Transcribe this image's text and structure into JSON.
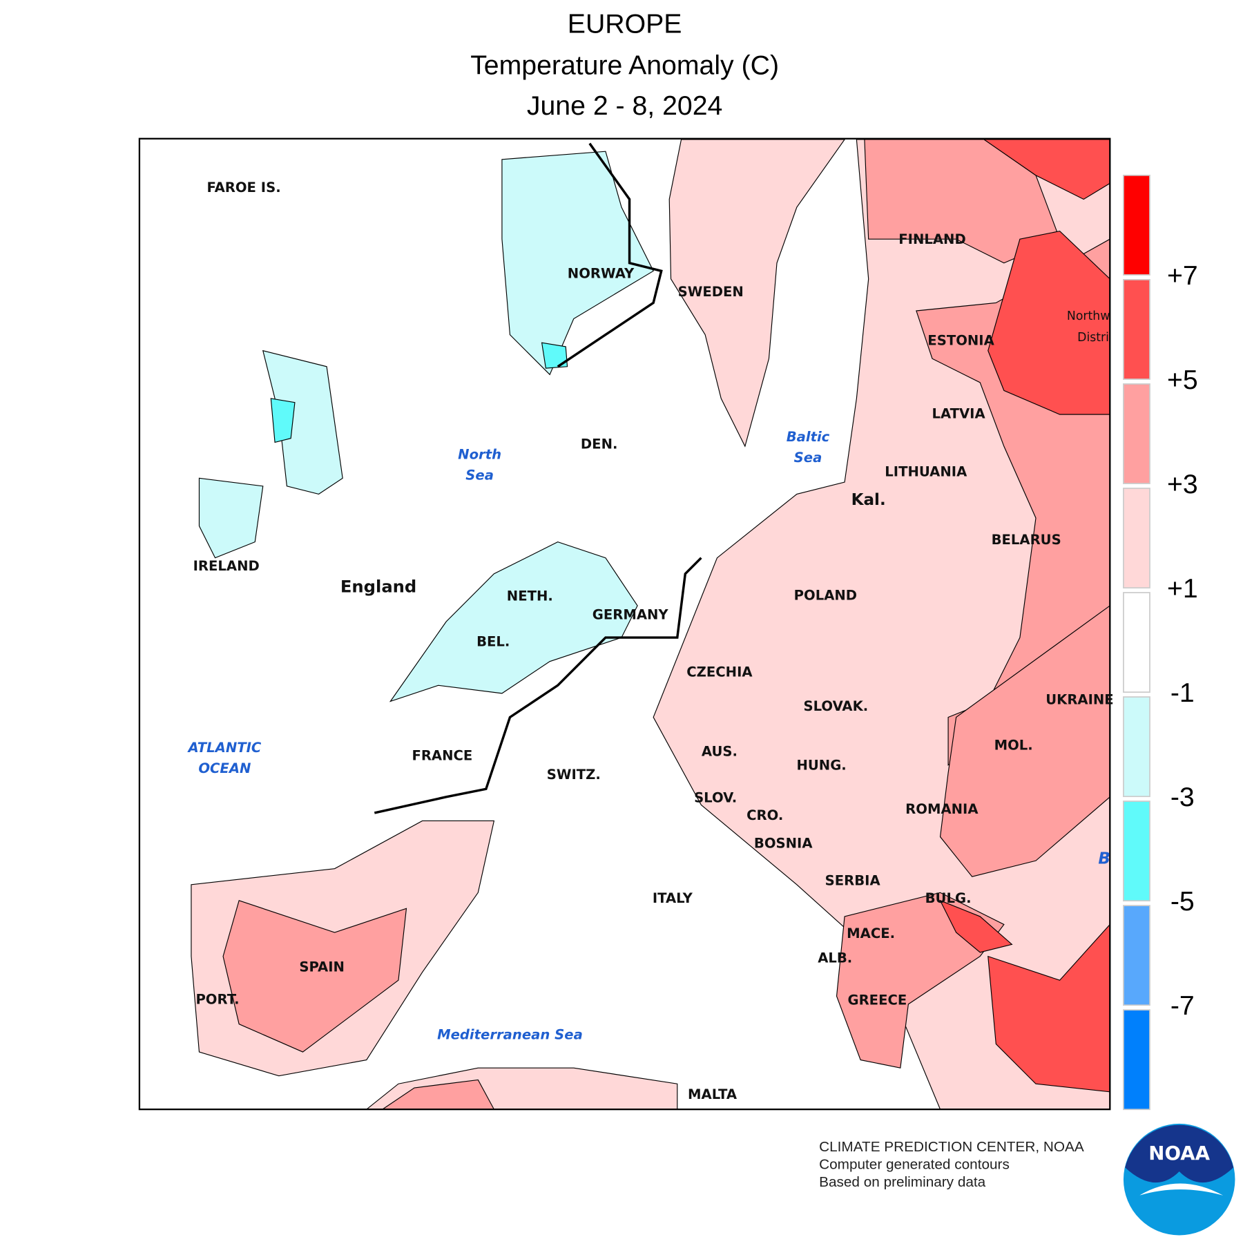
{
  "header": {
    "title": "EUROPE",
    "subtitle": "Temperature Anomaly (C)",
    "period": "June 2 - 8, 2024"
  },
  "map": {
    "labels": [
      "FAROE IS.",
      "NORWAY",
      "SWEDEN",
      "FINLAND",
      "ESTONIA",
      "LATVIA",
      "LITHUANIA",
      "Kal.",
      "BELARUS",
      "POLAND",
      "UKRAINE",
      "IRELAND",
      "England",
      "DEN.",
      "NETH.",
      "BEL.",
      "GERMANY",
      "CZECHIA",
      "SLOVAK.",
      "AUS.",
      "HUNG.",
      "MOL.",
      "SWITZ.",
      "FRANCE",
      "SLOV.",
      "CRO.",
      "ROMANIA",
      "BOSNIA",
      "SERBIA",
      "BULG.",
      "MACE.",
      "ALB.",
      "GREECE",
      "ITALY",
      "SPAIN",
      "PORT.",
      "MALTA",
      "Northw",
      "Distri"
    ],
    "water_labels": [
      [
        "North",
        "Sea"
      ],
      [
        "Baltic",
        "Sea"
      ],
      [
        "ATLANTIC",
        "OCEAN"
      ],
      [
        "Mediterranean Sea"
      ],
      [
        "B"
      ]
    ]
  },
  "legend": {
    "colors": [
      "#ff0000",
      "#ff5050",
      "#ffa0a0",
      "#ffd8d8",
      "#ffffff",
      "#ccfafa",
      "#60fafa",
      "#58a8fc",
      "#0080fc"
    ],
    "boundaries": [
      {
        "value": 7,
        "label": "+7"
      },
      {
        "value": 5,
        "label": "+5"
      },
      {
        "value": 3,
        "label": "+3"
      },
      {
        "value": 1,
        "label": "+1"
      },
      {
        "value": -1,
        "label": "-1"
      },
      {
        "value": -3,
        "label": "-3"
      },
      {
        "value": -5,
        "label": "-5"
      },
      {
        "value": -7,
        "label": "-7"
      }
    ]
  },
  "footer": {
    "lines": [
      "CLIMATE PREDICTION CENTER, NOAA",
      "Computer generated contours",
      "Based on preliminary data"
    ],
    "logo": "NOAA"
  }
}
